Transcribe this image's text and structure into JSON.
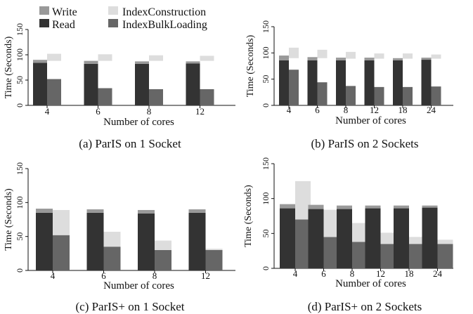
{
  "colors": {
    "write": "#999999",
    "read": "#333333",
    "index_construction": "#dddddd",
    "index_bulk_loading": "#666666",
    "axis": "#111111"
  },
  "legend": [
    {
      "key": "write",
      "label": "Write"
    },
    {
      "key": "index_construction",
      "label": "IndexConstruction"
    },
    {
      "key": "read",
      "label": "Read"
    },
    {
      "key": "index_bulk_loading",
      "label": "IndexBulkLoading"
    }
  ],
  "chart_data": [
    {
      "type": "bar",
      "id": "a",
      "caption": "(a) ParIS on 1 Socket",
      "xlabel": "Number of cores",
      "ylabel": "Time (Seconds)",
      "ylim": [
        0,
        150
      ],
      "yticks": [
        0,
        50,
        100,
        150
      ],
      "categories": [
        "4",
        "6",
        "8",
        "12"
      ],
      "series": [
        {
          "name": "Read",
          "key": "read",
          "values": [
            84,
            82,
            82,
            83
          ]
        },
        {
          "name": "Write",
          "key": "write",
          "values": [
            6,
            6,
            5,
            4
          ]
        },
        {
          "name": "IndexBulkLoading",
          "key": "index_bulk_loading",
          "values": [
            52,
            34,
            32,
            32
          ]
        },
        {
          "name": "IndexConstruction",
          "key": "index_construction",
          "values": [
            14,
            13,
            11,
            10
          ]
        },
        {
          "name": "IndexConstruction base",
          "key": "gap",
          "values": [
            88,
            88,
            88,
            88
          ]
        }
      ]
    },
    {
      "type": "bar",
      "id": "b",
      "caption": "(b) ParIS on 2 Sockets",
      "xlabel": "Number of cores",
      "ylabel": "Time (Seconds)",
      "ylim": [
        0,
        150
      ],
      "yticks": [
        0,
        50,
        100,
        150
      ],
      "categories": [
        "4",
        "6",
        "8",
        "12",
        "18",
        "24"
      ],
      "series": [
        {
          "name": "Read",
          "key": "read",
          "values": [
            86,
            86,
            86,
            86,
            86,
            87
          ]
        },
        {
          "name": "Write",
          "key": "write",
          "values": [
            9,
            6,
            5,
            5,
            4,
            4
          ]
        },
        {
          "name": "IndexBulkLoading",
          "key": "index_bulk_loading",
          "values": [
            68,
            44,
            37,
            35,
            35,
            36
          ]
        },
        {
          "name": "IndexConstruction",
          "key": "index_construction",
          "values": [
            20,
            16,
            13,
            10,
            10,
            8
          ]
        },
        {
          "name": "IndexConstruction base",
          "key": "gap",
          "values": [
            90,
            90,
            89,
            89,
            89,
            89
          ]
        }
      ]
    },
    {
      "type": "bar",
      "id": "c",
      "caption": "(c) ParIS+ on 1 Socket",
      "xlabel": "Number of cores",
      "ylabel": "Time (Seconds)",
      "ylim": [
        0,
        150
      ],
      "yticks": [
        0,
        50,
        100,
        150
      ],
      "categories": [
        "4",
        "6",
        "8",
        "12"
      ],
      "series": [
        {
          "name": "Read",
          "key": "read",
          "values": [
            85,
            85,
            84,
            85
          ]
        },
        {
          "name": "Write",
          "key": "write",
          "values": [
            6,
            5,
            5,
            5
          ]
        },
        {
          "name": "IndexBulkLoading",
          "key": "index_bulk_loading",
          "values": [
            52,
            35,
            30,
            30
          ]
        },
        {
          "name": "IndexConstruction",
          "key": "index_construction",
          "values": [
            37,
            22,
            14,
            2
          ]
        }
      ]
    },
    {
      "type": "bar",
      "id": "d",
      "caption": "(d) ParIS+ on 2 Sockets",
      "xlabel": "Number of cores",
      "ylabel": "Time (Seconds)",
      "ylim": [
        0,
        150
      ],
      "yticks": [
        0,
        50,
        100,
        150
      ],
      "categories": [
        "4",
        "6",
        "8",
        "12",
        "18",
        "24"
      ],
      "series": [
        {
          "name": "Read",
          "key": "read",
          "values": [
            86,
            85,
            85,
            86,
            86,
            87
          ]
        },
        {
          "name": "Write",
          "key": "write",
          "values": [
            6,
            6,
            5,
            4,
            4,
            3
          ]
        },
        {
          "name": "IndexBulkLoading",
          "key": "index_bulk_loading",
          "values": [
            70,
            45,
            38,
            35,
            35,
            35
          ]
        },
        {
          "name": "IndexConstruction",
          "key": "index_construction",
          "values": [
            55,
            39,
            27,
            16,
            10,
            6
          ]
        }
      ]
    }
  ]
}
